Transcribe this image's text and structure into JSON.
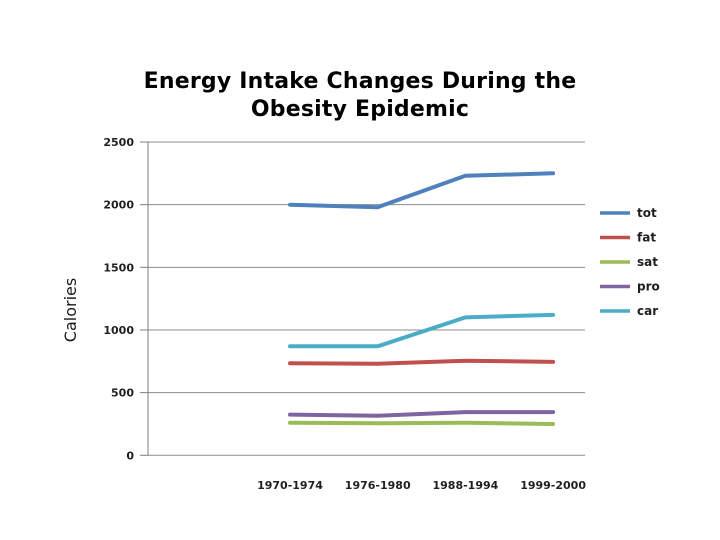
{
  "slide": {
    "title_line1": "Energy Intake Changes During the",
    "title_line2": "Obesity Epidemic"
  },
  "chart_data": {
    "type": "line",
    "title": "Energy Intake Changes During the Obesity Epidemic",
    "xlabel": "",
    "ylabel": "Calories",
    "categories": [
      "1970-1974",
      "1976-1980",
      "1988-1994",
      "1999-2000"
    ],
    "series": [
      {
        "name": "tot",
        "color": "#4F81BD",
        "values": [
          2000,
          1980,
          2230,
          2250
        ]
      },
      {
        "name": "fat",
        "color": "#C0504D",
        "values": [
          735,
          730,
          755,
          745
        ]
      },
      {
        "name": "sat",
        "color": "#9BBB59",
        "values": [
          260,
          255,
          260,
          250
        ]
      },
      {
        "name": "pro",
        "color": "#8064A2",
        "values": [
          325,
          315,
          345,
          345
        ]
      },
      {
        "name": "car",
        "color": "#4BACC6",
        "values": [
          870,
          870,
          1100,
          1120
        ]
      }
    ],
    "ylim": [
      0,
      2500
    ],
    "yticks": [
      0,
      500,
      1000,
      1500,
      2000,
      2500
    ],
    "grid": "horizontal",
    "legend_position": "right",
    "gridline_color": "#8C8C8C",
    "axis_line_color": "#7F7F7F",
    "background_color": "#FFFFFF"
  }
}
